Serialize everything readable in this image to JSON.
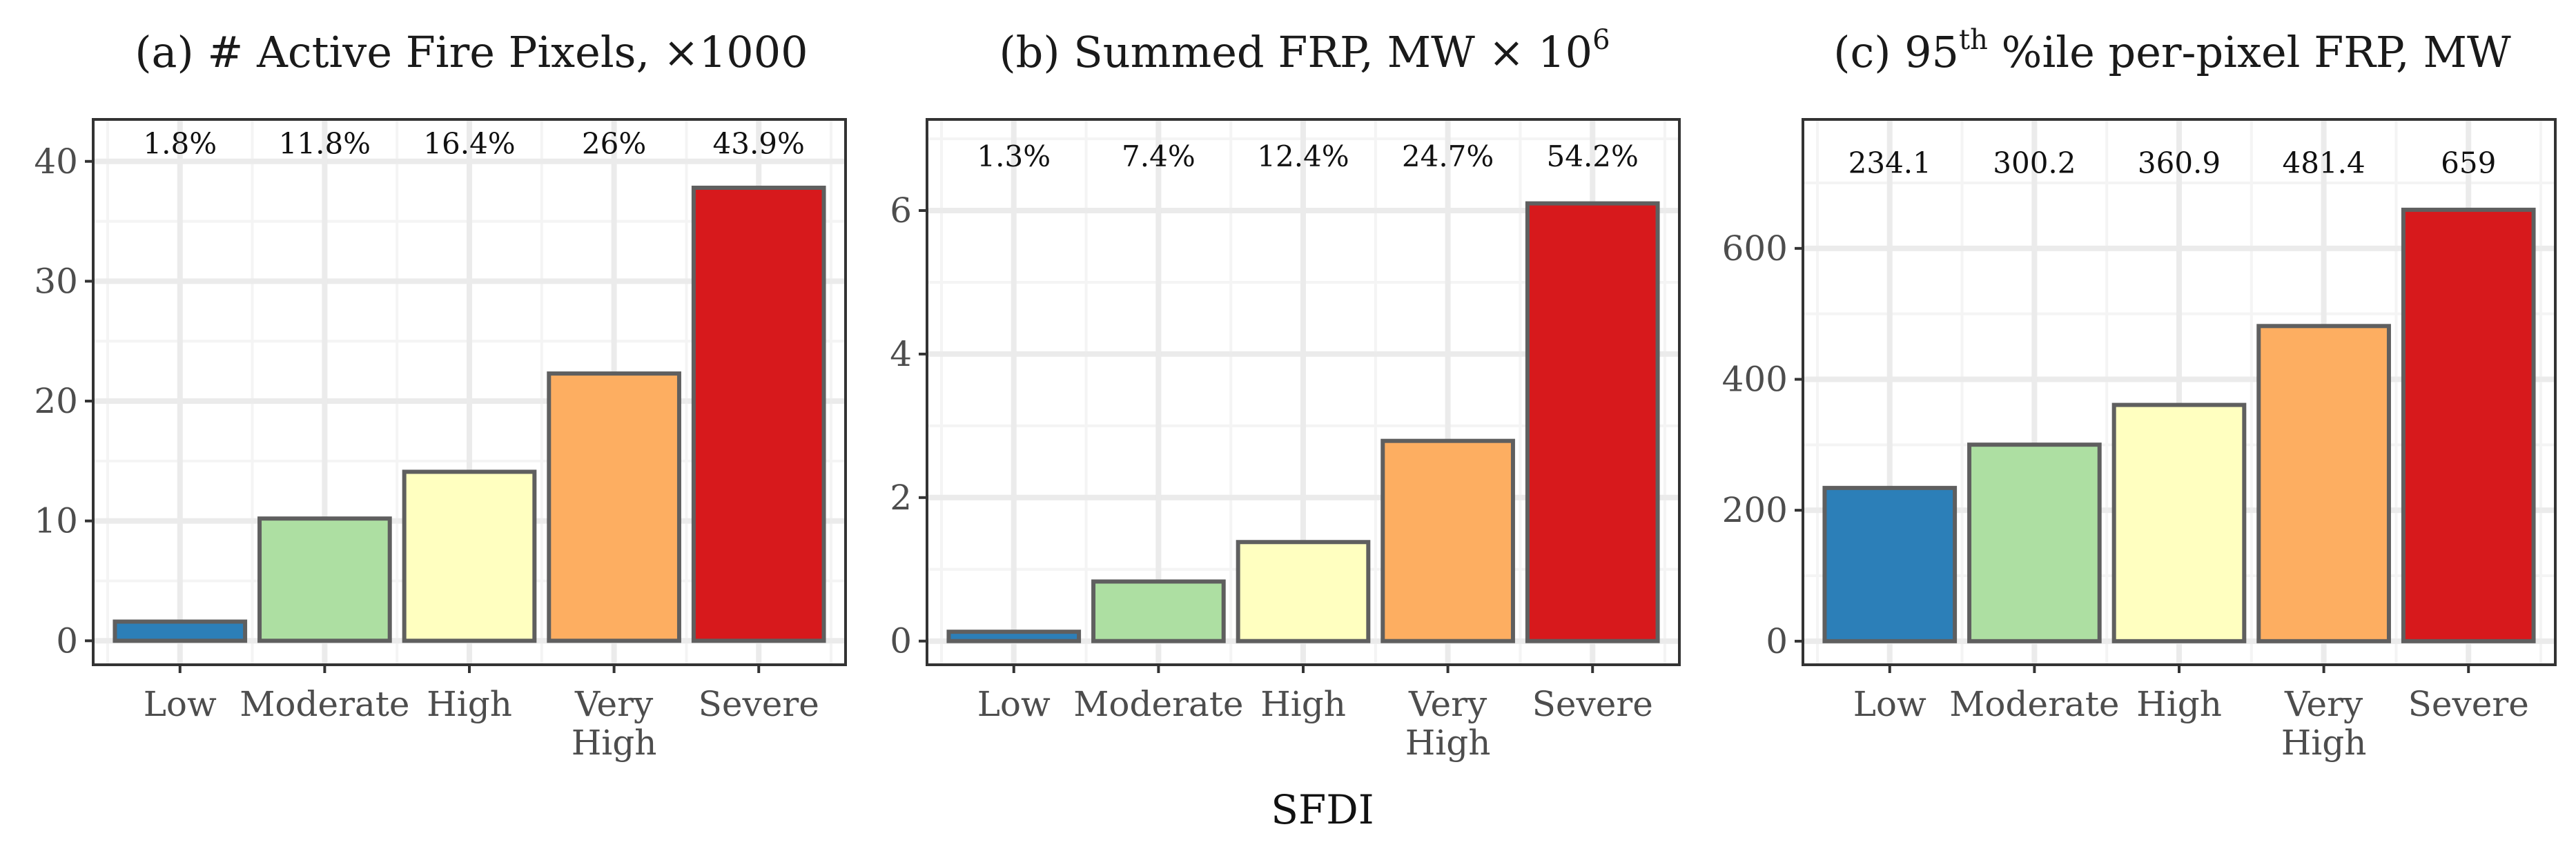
{
  "colors": {
    "low": "#2c7fb8",
    "moderate": "#addfa2",
    "high": "#ffffc0",
    "very_high": "#fdae61",
    "severe": "#d7191c",
    "bar_outline": "#5f5f5f"
  },
  "shared": {
    "x_axis_title": "SFDI"
  },
  "chart_data": [
    {
      "type": "bar",
      "title": "(a) # Active Fire Pixels, ×1000",
      "title_main": "(a) # Active Fire Pixels, ×1000",
      "categories": [
        "Low",
        "Moderate",
        "High",
        "Very High",
        "Severe"
      ],
      "category_lines": [
        [
          "Low"
        ],
        [
          "Moderate"
        ],
        [
          "High"
        ],
        [
          "Very",
          "High"
        ],
        [
          "Severe"
        ]
      ],
      "values": [
        1.6,
        10.2,
        14.1,
        22.3,
        37.8
      ],
      "bar_labels": [
        "1.8%",
        "11.8%",
        "16.4%",
        "26%",
        "43.9%"
      ],
      "xlabel": "SFDI",
      "ylabel": "",
      "ylim": [
        -2,
        43.5
      ],
      "yticks": [
        0,
        10,
        20,
        30,
        40
      ],
      "ytick_labels": [
        "0",
        "10",
        "20",
        "30",
        "40"
      ],
      "label_value": 41.5,
      "grid": true
    },
    {
      "type": "bar",
      "title": "(b) Summed FRP, MW × 10^6",
      "title_main": "(b) Summed FRP, MW × 10",
      "title_sup": "6",
      "categories": [
        "Low",
        "Moderate",
        "High",
        "Very High",
        "Severe"
      ],
      "category_lines": [
        [
          "Low"
        ],
        [
          "Moderate"
        ],
        [
          "High"
        ],
        [
          "Very",
          "High"
        ],
        [
          "Severe"
        ]
      ],
      "values": [
        0.13,
        0.83,
        1.38,
        2.79,
        6.1
      ],
      "bar_labels": [
        "1.3%",
        "7.4%",
        "12.4%",
        "24.7%",
        "54.2%"
      ],
      "xlabel": "SFDI",
      "ylabel": "",
      "ylim": [
        -0.33,
        7.27
      ],
      "yticks": [
        0,
        2,
        4,
        6
      ],
      "ytick_labels": [
        "0",
        "2",
        "4",
        "6"
      ],
      "label_value": 6.76,
      "grid": true
    },
    {
      "type": "bar",
      "title": "(c) 95th %ile per-pixel FRP, MW",
      "title_pre": "(c) 95",
      "title_sup": "th",
      "title_post": " %ile per-pixel FRP, MW",
      "categories": [
        "Low",
        "Moderate",
        "High",
        "Very High",
        "Severe"
      ],
      "category_lines": [
        [
          "Low"
        ],
        [
          "Moderate"
        ],
        [
          "High"
        ],
        [
          "Very",
          "High"
        ],
        [
          "Severe"
        ]
      ],
      "values": [
        234.1,
        300.2,
        360.9,
        481.4,
        659
      ],
      "bar_labels": [
        "234.1",
        "300.2",
        "360.9",
        "481.4",
        "659"
      ],
      "xlabel": "SFDI",
      "ylabel": "",
      "ylim": [
        -36,
        797
      ],
      "yticks": [
        0,
        200,
        400,
        600
      ],
      "ytick_labels": [
        "0",
        "200",
        "400",
        "600"
      ],
      "label_value": 731,
      "grid": true
    }
  ]
}
